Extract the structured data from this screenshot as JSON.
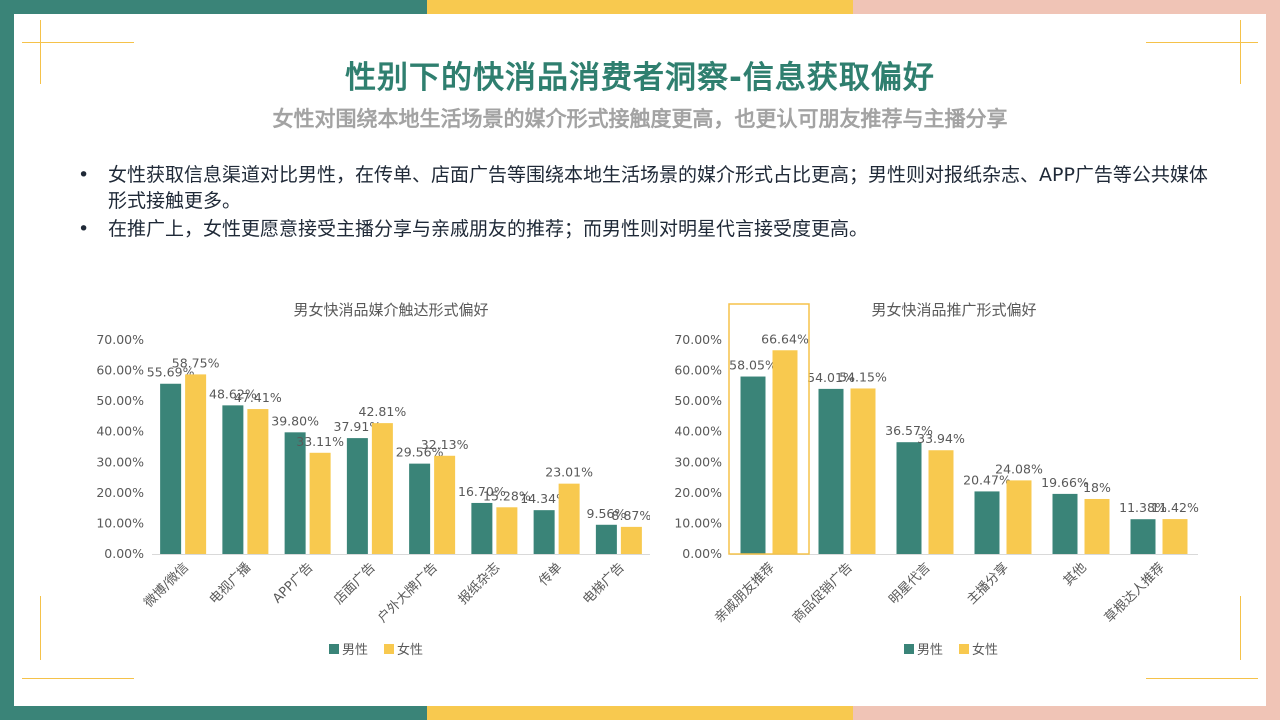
{
  "header": {
    "title": "性别下的快消品消费者洞察-信息获取偏好",
    "subtitle": "女性对围绕本地生活场景的媒介形式接触度更高，也更认可朋友推荐与主播分享"
  },
  "bullets": [
    "女性获取信息渠道对比男性，在传单、店面广告等围绕本地生活场景的媒介形式占比更高；男性则对报纸杂志、APP广告等公共媒体形式接触更多。",
    "在推广上，女性更愿意接受主播分享与亲戚朋友的推荐；而男性则对明星代言接受度更高。"
  ],
  "bullet_symbol": "•",
  "colors": {
    "male": "#3a8478",
    "female": "#f8c94f",
    "highlight_box": "#f5c24a"
  },
  "chart_data": [
    {
      "type": "bar",
      "title": "男女快消品媒介触达形式偏好",
      "categories": [
        "微博/微信",
        "电视广播",
        "APP广告",
        "店面广告",
        "户外大牌广告",
        "报纸杂志",
        "传单",
        "电梯广告"
      ],
      "series": [
        {
          "name": "男性",
          "values": [
            55.69,
            48.62,
            39.8,
            37.91,
            29.56,
            16.7,
            14.34,
            9.56
          ],
          "labels": [
            "55.69%",
            "48.62%",
            "39.80%",
            "37.91%",
            "29.56%",
            "16.70%",
            "14.34%",
            "9.56%"
          ]
        },
        {
          "name": "女性",
          "values": [
            58.75,
            47.41,
            33.11,
            42.81,
            32.13,
            15.28,
            23.01,
            8.87
          ],
          "labels": [
            "58.75%",
            "47.41%",
            "33.11%",
            "42.81%",
            "32.13%",
            "15.28%",
            "23.01%",
            "8.87%"
          ]
        }
      ],
      "y_ticks": [
        "0.00%",
        "10.00%",
        "20.00%",
        "30.00%",
        "40.00%",
        "50.00%",
        "60.00%",
        "70.00%"
      ],
      "ylim": [
        0,
        70
      ],
      "legend": "bottom",
      "highlight_index": null
    },
    {
      "type": "bar",
      "title": "男女快消品推广形式偏好",
      "categories": [
        "亲戚朋友推荐",
        "商品促销广告",
        "明星代言",
        "主播分享",
        "其他",
        "草根达人推荐"
      ],
      "series": [
        {
          "name": "男性",
          "values": [
            58.05,
            54.01,
            36.57,
            20.47,
            19.66,
            11.38
          ],
          "labels": [
            "58.05%",
            "54.01%",
            "36.57%",
            "20.47%",
            "19.66%",
            "11.38%"
          ]
        },
        {
          "name": "女性",
          "values": [
            66.64,
            54.15,
            33.94,
            24.08,
            18.0,
            11.42
          ],
          "labels": [
            "66.64%",
            "54.15%",
            "33.94%",
            "24.08%",
            "18%",
            "11.42%"
          ]
        }
      ],
      "y_ticks": [
        "0.00%",
        "10.00%",
        "20.00%",
        "30.00%",
        "40.00%",
        "50.00%",
        "60.00%",
        "70.00%"
      ],
      "ylim": [
        0,
        70
      ],
      "legend": "bottom",
      "highlight_index": 0
    }
  ]
}
